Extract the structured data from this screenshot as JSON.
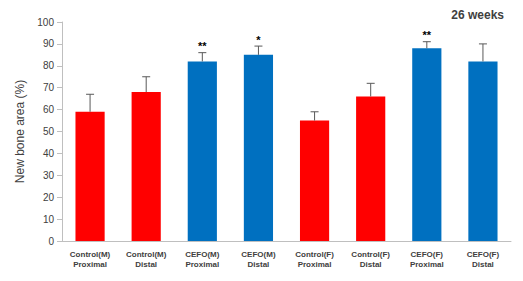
{
  "chart_data": {
    "type": "bar",
    "title": "26 weeks",
    "y_label": "New bone area (%)",
    "categories": [
      "Control(M)\nProximal",
      "Control(M)\nDistal",
      "CEFO(M)\nProximal",
      "CEFO(M)\nDistal",
      "Control(F)\nProximal",
      "Control(F)\nDistal",
      "CEFO(F)\nProximal",
      "CEFO(F)\nDistal"
    ],
    "values": [
      59,
      68,
      82,
      85,
      55,
      66,
      88,
      82
    ],
    "errors": [
      8,
      7,
      4,
      4,
      4,
      6,
      3,
      8
    ],
    "significance": [
      null,
      null,
      "**",
      "*",
      null,
      null,
      "**",
      null
    ],
    "colors": [
      "#ff0000",
      "#ff0000",
      "#0070c0",
      "#0070c0",
      "#ff0000",
      "#ff0000",
      "#0070c0",
      "#0070c0"
    ],
    "ylim": [
      0,
      100
    ],
    "yticks": [
      0,
      10,
      20,
      30,
      40,
      50,
      60,
      70,
      80,
      90,
      100
    ],
    "grid": false
  }
}
